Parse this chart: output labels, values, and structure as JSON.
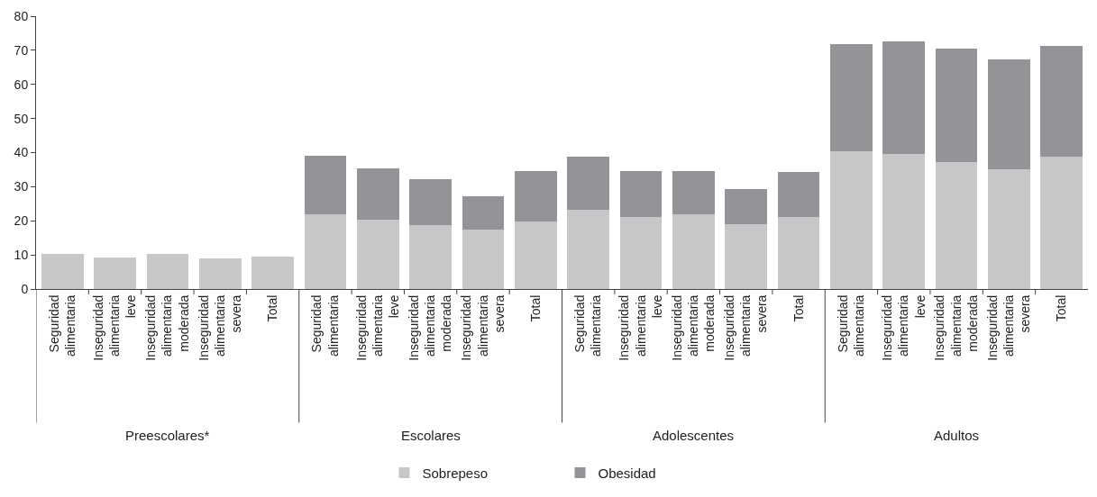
{
  "chart_data": {
    "type": "bar",
    "stacked": true,
    "categories": [
      "Seguridad\nalimentaria",
      "Inseguridad\nalimentaria\nleve",
      "Inseguridad\nalimentaria\nmoderada",
      "Inseguridad\nalimentaria\nsevera",
      "Total",
      "Seguridad\nalimentaria",
      "Inseguridad\nalimentaria\nleve",
      "Inseguridad\nalimentaria\nmoderada",
      "Inseguridad\nalimentaria\nsevera",
      "Total",
      "Seguridad\nalimentaria",
      "Inseguridad\nalimentaria\nleve",
      "Inseguridad\nalimentaria\nmoderada",
      "Inseguridad\nalimentaria\nsevera",
      "Total",
      "Seguridad\nalimentaria",
      "Inseguridad\nalimentaria\nleve",
      "Inseguridad\nalimentaria\nmoderada",
      "Inseguridad\nalimentaria\nsevera",
      "Total"
    ],
    "series": [
      {
        "name": "Sobrepeso",
        "color": "#c6c7c9",
        "values": [
          10.2,
          9.2,
          10.2,
          8.9,
          9.5,
          21.8,
          20.3,
          18.7,
          17.3,
          19.9,
          23.2,
          21.2,
          22.0,
          18.9,
          21.0,
          40.3,
          39.6,
          37.3,
          35.0,
          38.9
        ]
      },
      {
        "name": "Obesidad",
        "color": "#939498",
        "values": [
          null,
          null,
          null,
          null,
          null,
          17.3,
          15.1,
          13.4,
          9.8,
          14.7,
          15.7,
          13.3,
          12.6,
          10.4,
          13.2,
          31.5,
          32.9,
          33.1,
          32.4,
          32.4
        ]
      }
    ],
    "annotations": [
      "Preescolares*",
      "Escolares",
      "Adolescentes",
      "Adultos"
    ],
    "ylim": [
      0,
      80
    ],
    "yticks": [
      0,
      10,
      20,
      30,
      40,
      50,
      60,
      70,
      80
    ],
    "legend": "bottom"
  }
}
